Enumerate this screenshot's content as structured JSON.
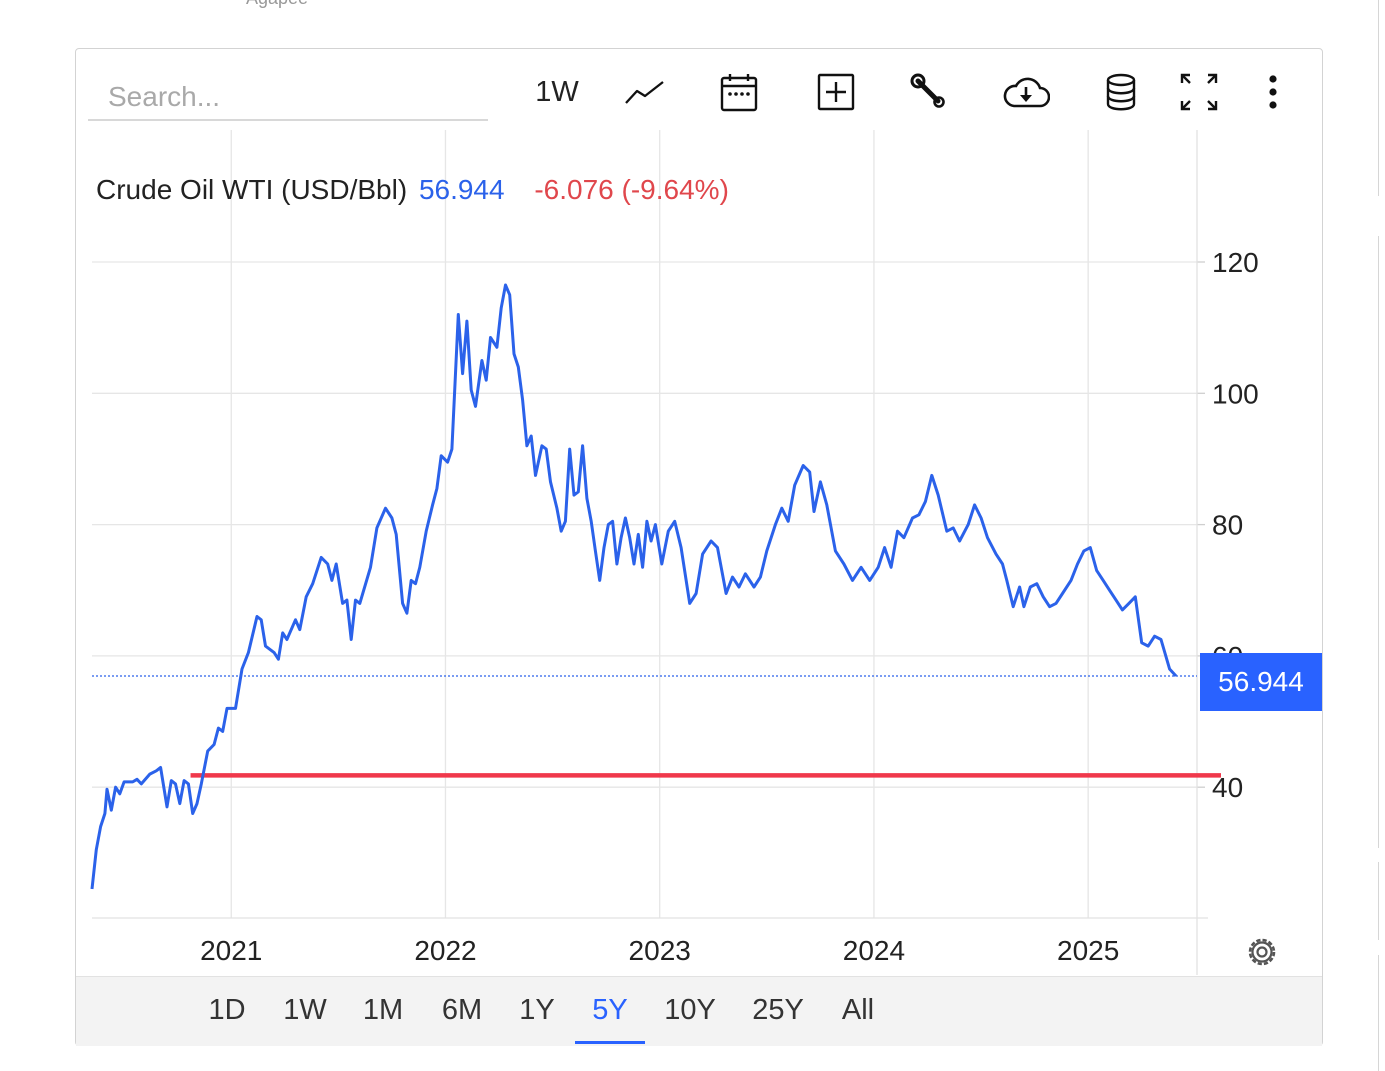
{
  "top_partial_text": "Agapee",
  "toolbar": {
    "search_placeholder": "Search...",
    "interval_label": "1W",
    "icons": [
      "line-chart-icon",
      "calendar-icon",
      "add-box-icon",
      "wrench-icon",
      "cloud-download-icon",
      "database-icon",
      "fullscreen-icon",
      "more-vertical-icon"
    ]
  },
  "legend": {
    "name": "Crude Oil WTI (USD/Bbl)",
    "price": "56.944",
    "change": "-6.076 (-9.64%)"
  },
  "price_tag": "56.944",
  "colors": {
    "series_line": "#2b62ea",
    "price_tag_bg": "#2962ff",
    "change_text": "#e0474c",
    "horizontal_line": "#f0384b",
    "active_range": "#2962ff"
  },
  "range_buttons": [
    "1D",
    "1W",
    "1M",
    "6M",
    "1Y",
    "5Y",
    "10Y",
    "25Y",
    "All"
  ],
  "active_range": "5Y",
  "chart_data": {
    "type": "line",
    "title": "Crude Oil WTI (USD/Bbl)",
    "xlabel": "",
    "ylabel": "",
    "x_ticks": [
      "2021",
      "2022",
      "2023",
      "2024",
      "2025"
    ],
    "y_ticks": [
      40,
      60,
      80,
      100,
      120
    ],
    "ylim": [
      20,
      140
    ],
    "xlim": [
      2020.35,
      2025.41
    ],
    "grid": true,
    "legend": "top-left",
    "last_price": 56.944,
    "horizontal_line": {
      "y": 41.8,
      "x_start": 2020.81,
      "x_end": 2025.62,
      "color": "#f0384b"
    },
    "series": [
      {
        "name": "Crude Oil WTI (USD/Bbl)",
        "points": [
          [
            2020.35,
            24.5
          ],
          [
            2020.37,
            30.5
          ],
          [
            2020.39,
            34.0
          ],
          [
            2020.41,
            36.0
          ],
          [
            2020.42,
            39.7
          ],
          [
            2020.44,
            36.5
          ],
          [
            2020.46,
            40.0
          ],
          [
            2020.48,
            39.0
          ],
          [
            2020.5,
            40.8
          ],
          [
            2020.54,
            40.8
          ],
          [
            2020.56,
            41.2
          ],
          [
            2020.58,
            40.5
          ],
          [
            2020.62,
            42.0
          ],
          [
            2020.65,
            42.5
          ],
          [
            2020.67,
            43.0
          ],
          [
            2020.7,
            37.0
          ],
          [
            2020.72,
            41.0
          ],
          [
            2020.74,
            40.5
          ],
          [
            2020.76,
            37.5
          ],
          [
            2020.78,
            41.0
          ],
          [
            2020.8,
            40.5
          ],
          [
            2020.82,
            36.0
          ],
          [
            2020.84,
            37.5
          ],
          [
            2020.86,
            40.5
          ],
          [
            2020.89,
            45.5
          ],
          [
            2020.92,
            46.5
          ],
          [
            2020.94,
            49.0
          ],
          [
            2020.96,
            48.5
          ],
          [
            2020.98,
            52.0
          ],
          [
            2021.02,
            52.0
          ],
          [
            2021.05,
            58.0
          ],
          [
            2021.08,
            60.5
          ],
          [
            2021.12,
            66.0
          ],
          [
            2021.14,
            65.5
          ],
          [
            2021.16,
            61.5
          ],
          [
            2021.2,
            60.5
          ],
          [
            2021.22,
            59.5
          ],
          [
            2021.24,
            63.5
          ],
          [
            2021.26,
            62.5
          ],
          [
            2021.3,
            65.5
          ],
          [
            2021.32,
            64.0
          ],
          [
            2021.35,
            69.0
          ],
          [
            2021.38,
            71.0
          ],
          [
            2021.42,
            75.0
          ],
          [
            2021.45,
            74.0
          ],
          [
            2021.47,
            71.5
          ],
          [
            2021.49,
            74.0
          ],
          [
            2021.52,
            68.0
          ],
          [
            2021.54,
            68.5
          ],
          [
            2021.56,
            62.5
          ],
          [
            2021.58,
            68.5
          ],
          [
            2021.6,
            68.0
          ],
          [
            2021.65,
            73.5
          ],
          [
            2021.68,
            79.5
          ],
          [
            2021.72,
            82.5
          ],
          [
            2021.75,
            81.0
          ],
          [
            2021.77,
            78.5
          ],
          [
            2021.8,
            68.0
          ],
          [
            2021.82,
            66.5
          ],
          [
            2021.84,
            71.5
          ],
          [
            2021.86,
            71.0
          ],
          [
            2021.88,
            73.5
          ],
          [
            2021.91,
            79.0
          ],
          [
            2021.94,
            83.0
          ],
          [
            2021.96,
            85.5
          ],
          [
            2021.98,
            90.5
          ],
          [
            2022.01,
            89.5
          ],
          [
            2022.03,
            91.5
          ],
          [
            2022.06,
            112.0
          ],
          [
            2022.08,
            103.0
          ],
          [
            2022.1,
            111.0
          ],
          [
            2022.12,
            100.5
          ],
          [
            2022.14,
            98.0
          ],
          [
            2022.17,
            105.0
          ],
          [
            2022.19,
            102.0
          ],
          [
            2022.21,
            108.5
          ],
          [
            2022.24,
            107.0
          ],
          [
            2022.26,
            113.0
          ],
          [
            2022.28,
            116.5
          ],
          [
            2022.3,
            115.0
          ],
          [
            2022.32,
            106.0
          ],
          [
            2022.34,
            104.0
          ],
          [
            2022.36,
            99.0
          ],
          [
            2022.38,
            92.0
          ],
          [
            2022.4,
            93.5
          ],
          [
            2022.42,
            87.5
          ],
          [
            2022.45,
            92.0
          ],
          [
            2022.47,
            91.5
          ],
          [
            2022.49,
            86.5
          ],
          [
            2022.52,
            82.5
          ],
          [
            2022.54,
            79.0
          ],
          [
            2022.56,
            80.5
          ],
          [
            2022.58,
            91.5
          ],
          [
            2022.6,
            84.5
          ],
          [
            2022.62,
            85.0
          ],
          [
            2022.64,
            92.0
          ],
          [
            2022.66,
            84.0
          ],
          [
            2022.68,
            80.5
          ],
          [
            2022.7,
            76.0
          ],
          [
            2022.72,
            71.5
          ],
          [
            2022.74,
            76.5
          ],
          [
            2022.76,
            80.0
          ],
          [
            2022.78,
            80.5
          ],
          [
            2022.8,
            74.0
          ],
          [
            2022.82,
            78.0
          ],
          [
            2022.84,
            81.0
          ],
          [
            2022.86,
            78.0
          ],
          [
            2022.88,
            74.0
          ],
          [
            2022.9,
            78.5
          ],
          [
            2022.92,
            73.5
          ],
          [
            2022.94,
            80.5
          ],
          [
            2022.96,
            77.5
          ],
          [
            2022.98,
            80.0
          ],
          [
            2023.01,
            74.0
          ],
          [
            2023.04,
            79.0
          ],
          [
            2023.07,
            80.5
          ],
          [
            2023.1,
            76.5
          ],
          [
            2023.14,
            68.0
          ],
          [
            2023.17,
            69.5
          ],
          [
            2023.2,
            75.5
          ],
          [
            2023.24,
            77.5
          ],
          [
            2023.27,
            76.5
          ],
          [
            2023.31,
            69.5
          ],
          [
            2023.34,
            72.0
          ],
          [
            2023.37,
            70.5
          ],
          [
            2023.4,
            72.5
          ],
          [
            2023.44,
            70.5
          ],
          [
            2023.47,
            72.0
          ],
          [
            2023.5,
            76.0
          ],
          [
            2023.54,
            80.0
          ],
          [
            2023.57,
            82.5
          ],
          [
            2023.6,
            80.5
          ],
          [
            2023.63,
            86.0
          ],
          [
            2023.67,
            89.0
          ],
          [
            2023.7,
            88.0
          ],
          [
            2023.72,
            82.0
          ],
          [
            2023.75,
            86.5
          ],
          [
            2023.78,
            83.0
          ],
          [
            2023.82,
            76.0
          ],
          [
            2023.86,
            74.0
          ],
          [
            2023.9,
            71.5
          ],
          [
            2023.94,
            73.5
          ],
          [
            2023.98,
            71.5
          ],
          [
            2024.02,
            73.5
          ],
          [
            2024.05,
            76.5
          ],
          [
            2024.08,
            73.5
          ],
          [
            2024.11,
            79.0
          ],
          [
            2024.14,
            78.0
          ],
          [
            2024.18,
            81.0
          ],
          [
            2024.21,
            81.5
          ],
          [
            2024.24,
            83.5
          ],
          [
            2024.27,
            87.5
          ],
          [
            2024.3,
            84.5
          ],
          [
            2024.34,
            79.0
          ],
          [
            2024.37,
            79.5
          ],
          [
            2024.4,
            77.5
          ],
          [
            2024.44,
            80.0
          ],
          [
            2024.47,
            83.0
          ],
          [
            2024.5,
            81.0
          ],
          [
            2024.53,
            78.0
          ],
          [
            2024.57,
            75.5
          ],
          [
            2024.6,
            74.0
          ],
          [
            2024.62,
            71.5
          ],
          [
            2024.65,
            67.5
          ],
          [
            2024.68,
            70.5
          ],
          [
            2024.7,
            67.5
          ],
          [
            2024.73,
            70.5
          ],
          [
            2024.76,
            71.0
          ],
          [
            2024.79,
            69.0
          ],
          [
            2024.82,
            67.5
          ],
          [
            2024.85,
            68.0
          ],
          [
            2024.88,
            69.5
          ],
          [
            2024.92,
            71.5
          ],
          [
            2024.95,
            74.0
          ],
          [
            2024.98,
            76.0
          ],
          [
            2025.01,
            76.5
          ],
          [
            2025.04,
            73.0
          ],
          [
            2025.07,
            71.5
          ],
          [
            2025.1,
            70.0
          ],
          [
            2025.13,
            68.5
          ],
          [
            2025.16,
            67.0
          ],
          [
            2025.19,
            68.0
          ],
          [
            2025.22,
            69.0
          ],
          [
            2025.25,
            62.0
          ],
          [
            2025.28,
            61.5
          ],
          [
            2025.31,
            63.0
          ],
          [
            2025.34,
            62.5
          ],
          [
            2025.38,
            58.0
          ],
          [
            2025.41,
            56.944
          ]
        ]
      }
    ]
  }
}
